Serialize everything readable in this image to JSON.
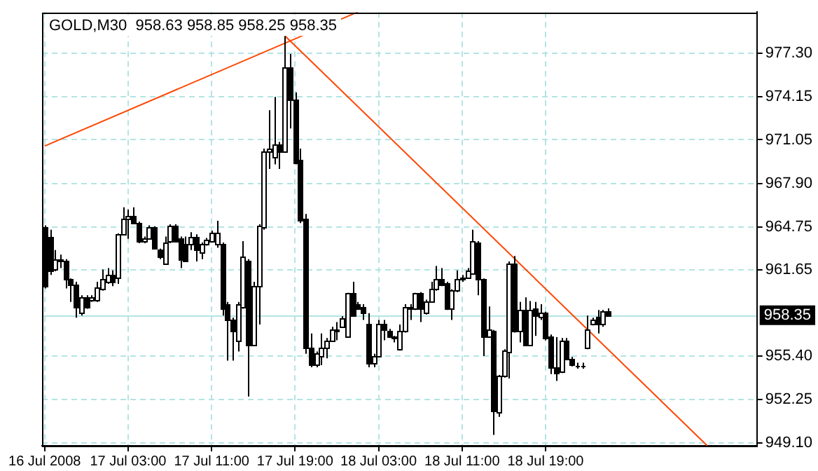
{
  "chart_data": {
    "type": "candlestick",
    "title": "GOLD,M30  958.63 958.85 958.25 958.35",
    "color": "#000000",
    "categories": [
      "16 Jul 2008",
      null,
      null,
      null,
      null,
      null,
      null,
      null,
      null,
      null,
      null,
      null,
      null,
      null,
      null,
      null,
      "17 Jul 03:00",
      null,
      null,
      null,
      null,
      null,
      null,
      null,
      null,
      null,
      null,
      null,
      null,
      null,
      null,
      null,
      "17 Jul 11:00",
      null,
      null,
      null,
      null,
      null,
      null,
      null,
      null,
      null,
      null,
      null,
      null,
      null,
      null,
      null,
      "17 Jul 19:00",
      null,
      null,
      null,
      null,
      null,
      null,
      null,
      null,
      null,
      null,
      null,
      null,
      null,
      null,
      null,
      "18 Jul 03:00",
      null,
      null,
      null,
      null,
      null,
      null,
      null,
      null,
      null,
      null,
      null,
      null,
      null,
      null,
      null,
      "18 Jul 11:00",
      null,
      null,
      null,
      null,
      null,
      null,
      null,
      null,
      null,
      null,
      null,
      null,
      null,
      null,
      null,
      "18 Jul 19:00",
      null,
      null,
      null,
      null,
      null,
      null,
      null,
      null,
      null,
      null,
      null,
      null,
      null,
      null,
      null,
      null,
      null,
      null,
      null,
      null,
      null,
      null,
      null,
      null,
      null,
      null,
      null,
      null,
      null,
      null,
      null,
      null,
      null,
      null,
      null,
      null,
      null,
      null,
      null,
      null
    ],
    "ohlc": [
      [
        964.7,
        964.86,
        960.29,
        960.46
      ],
      [
        964.05,
        964.54,
        961.27,
        961.6
      ],
      [
        961.66,
        963.07,
        961.53,
        962.41
      ],
      [
        962.25,
        962.74,
        961.76,
        962.41
      ],
      [
        962.25,
        962.41,
        960.29,
        960.95
      ],
      [
        960.95,
        961.01,
        959.31,
        960.55
      ],
      [
        960.62,
        960.78,
        958.17,
        958.99
      ],
      [
        958.5,
        959.8,
        958.33,
        959.64
      ],
      [
        959.64,
        959.8,
        958.82,
        958.99
      ],
      [
        959.48,
        959.8,
        959.31,
        959.64
      ],
      [
        959.48,
        960.78,
        959.31,
        960.36
      ],
      [
        960.29,
        961.66,
        960.13,
        960.95
      ],
      [
        960.78,
        961.76,
        960.62,
        961.27
      ],
      [
        961.27,
        961.6,
        960.46,
        960.78
      ],
      [
        961.11,
        964.27,
        960.62,
        964.21
      ],
      [
        964.21,
        966.17,
        964.14,
        965.35
      ],
      [
        965.35,
        966.0,
        963.88,
        965.58
      ],
      [
        965.52,
        966.17,
        964.93,
        965.03
      ],
      [
        965.03,
        965.12,
        963.56,
        963.72
      ],
      [
        963.72,
        964.05,
        963.56,
        963.88
      ],
      [
        963.88,
        964.86,
        963.82,
        964.7
      ],
      [
        964.7,
        964.8,
        963.17,
        963.23
      ],
      [
        963.07,
        963.17,
        962.41,
        962.58
      ],
      [
        962.09,
        964.05,
        962.06,
        963.62
      ],
      [
        963.72,
        964.93,
        963.56,
        964.86
      ],
      [
        964.86,
        964.93,
        963.62,
        963.72
      ],
      [
        963.88,
        964.05,
        961.76,
        962.41
      ],
      [
        963.56,
        964.05,
        962.25,
        962.32
      ],
      [
        963.56,
        964.37,
        963.07,
        964.05
      ],
      [
        964.05,
        964.21,
        962.25,
        963.07
      ],
      [
        962.91,
        963.62,
        962.41,
        963.49
      ],
      [
        963.49,
        963.95,
        963.39,
        963.79
      ],
      [
        963.72,
        964.47,
        963.62,
        964.37
      ],
      [
        963.56,
        965.19,
        963.23,
        964.31
      ],
      [
        963.56,
        963.62,
        958.33,
        958.82
      ],
      [
        959.15,
        959.31,
        955.07,
        958.01
      ],
      [
        958.01,
        958.17,
        955.07,
        957.19
      ],
      [
        956.54,
        959.31,
        955.72,
        959.15
      ],
      [
        958.99,
        963.72,
        958.82,
        962.58
      ],
      [
        962.25,
        962.41,
        952.46,
        956.21
      ],
      [
        956.21,
        960.78,
        956.11,
        960.46
      ],
      [
        960.46,
        964.93,
        957.68,
        964.86
      ],
      [
        964.7,
        970.41,
        964.54,
        970.25
      ],
      [
        970.25,
        973.19,
        968.94,
        970.41
      ],
      [
        969.76,
        974.16,
        969.27,
        970.74
      ],
      [
        970.74,
        970.9,
        968.94,
        970.25
      ],
      [
        970.25,
        978.57,
        970.15,
        976.29
      ],
      [
        976.29,
        977.27,
        971.88,
        974.0
      ],
      [
        974.0,
        974.49,
        969.27,
        969.43
      ],
      [
        969.6,
        970.41,
        965.03,
        965.19
      ],
      [
        965.35,
        965.68,
        955.56,
        956.05
      ],
      [
        956.05,
        957.03,
        954.58,
        954.74
      ],
      [
        954.74,
        955.72,
        954.58,
        955.56
      ],
      [
        955.4,
        957.03,
        954.74,
        956.05
      ],
      [
        956.05,
        956.7,
        955.23,
        956.54
      ],
      [
        956.54,
        957.52,
        956.44,
        957.36
      ],
      [
        957.19,
        957.85,
        956.54,
        957.36
      ],
      [
        957.52,
        958.27,
        957.42,
        958.17
      ],
      [
        956.86,
        959.97,
        956.77,
        959.97
      ],
      [
        959.97,
        960.78,
        958.27,
        958.33
      ],
      [
        959.15,
        959.31,
        958.73,
        958.82
      ],
      [
        958.99,
        959.15,
        958.01,
        958.5
      ],
      [
        957.68,
        958.5,
        954.58,
        954.91
      ],
      [
        954.91,
        955.56,
        954.58,
        955.4
      ],
      [
        955.4,
        958.01,
        955.33,
        957.68
      ],
      [
        957.68,
        958.01,
        956.54,
        957.29
      ],
      [
        957.19,
        957.36,
        956.7,
        956.86
      ],
      [
        956.7,
        956.86,
        956.38,
        956.77
      ],
      [
        955.89,
        957.68,
        955.79,
        957.19
      ],
      [
        957.19,
        959.15,
        957.09,
        958.99
      ],
      [
        958.82,
        959.15,
        958.01,
        958.99
      ],
      [
        958.82,
        959.97,
        958.73,
        959.97
      ],
      [
        959.97,
        960.03,
        957.85,
        958.82
      ],
      [
        958.5,
        959.48,
        958.4,
        959.38
      ],
      [
        959.31,
        960.78,
        959.25,
        960.29
      ],
      [
        960.23,
        961.92,
        960.13,
        961.01
      ],
      [
        961.01,
        961.76,
        960.46,
        960.62
      ],
      [
        960.69,
        960.78,
        958.73,
        958.82
      ],
      [
        958.82,
        960.23,
        958.01,
        960.13
      ],
      [
        960.13,
        961.6,
        960.03,
        961.01
      ],
      [
        961.01,
        961.27,
        960.78,
        961.11
      ],
      [
        961.11,
        961.76,
        961.01,
        961.6
      ],
      [
        961.43,
        964.54,
        961.33,
        963.72
      ],
      [
        963.62,
        963.72,
        959.8,
        960.95
      ],
      [
        960.95,
        961.01,
        955.4,
        956.86
      ],
      [
        956.86,
        958.99,
        956.77,
        957.36
      ],
      [
        957.19,
        957.29,
        949.69,
        951.48
      ],
      [
        951.32,
        954.03,
        950.99,
        953.93
      ],
      [
        953.93,
        955.89,
        953.83,
        955.79
      ],
      [
        955.72,
        962.25,
        953.77,
        962.09
      ],
      [
        962.09,
        962.64,
        957.09,
        957.19
      ],
      [
        957.19,
        959.31,
        956.38,
        958.73
      ],
      [
        958.73,
        959.64,
        956.11,
        956.21
      ],
      [
        956.21,
        959.38,
        956.11,
        958.73
      ],
      [
        958.82,
        959.31,
        956.86,
        958.33
      ],
      [
        958.24,
        959.15,
        958.01,
        958.5
      ],
      [
        958.5,
        958.6,
        956.54,
        956.7
      ],
      [
        956.86,
        956.96,
        954.09,
        954.58
      ],
      [
        954.58,
        956.77,
        953.6,
        954.16
      ],
      [
        954.26,
        956.7,
        954.16,
        956.54
      ],
      [
        956.54,
        956.7,
        955.14,
        955.23
      ],
      [
        955.23,
        955.33,
        954.65,
        954.74
      ],
      [
        954.68,
        954.91,
        954.48,
        954.68
      ],
      [
        954.68,
        954.91,
        954.48,
        954.65
      ],
      [
        956.05,
        958.33,
        955.89,
        957.29
      ],
      [
        957.68,
        958.17,
        957.62,
        958.01
      ],
      [
        958.24,
        958.73,
        957.03,
        957.75
      ],
      [
        957.68,
        958.73,
        957.52,
        958.66
      ],
      [
        958.63,
        958.85,
        958.25,
        958.35
      ],
      null,
      null,
      null,
      null,
      null,
      null,
      null,
      null,
      null,
      null,
      null,
      null,
      null,
      null,
      null,
      null,
      null,
      null,
      null,
      null,
      null,
      null,
      null,
      null,
      null,
      null,
      null,
      null
    ],
    "series": [
      {
        "type": "line",
        "color": "#ff4500",
        "values": [
          970.6,
          null,
          null,
          null,
          null,
          null,
          null,
          null,
          null,
          null,
          null,
          null,
          null,
          null,
          null,
          null,
          null,
          null,
          null,
          null,
          null,
          null,
          null,
          null,
          null,
          null,
          null,
          null,
          null,
          null,
          null,
          null,
          null,
          null,
          null,
          null,
          null,
          null,
          null,
          null,
          null,
          null,
          null,
          null,
          null,
          null,
          null,
          null,
          null,
          null,
          null,
          null,
          null,
          null,
          null,
          null,
          null,
          null,
          null,
          null,
          980.3,
          null,
          null,
          null,
          null,
          null,
          null,
          null,
          null,
          null,
          null,
          null,
          null,
          null,
          null,
          null,
          null,
          null,
          null,
          null,
          null,
          null,
          null,
          null,
          null,
          null,
          null,
          null,
          null,
          null,
          null,
          null,
          null,
          null,
          null,
          null,
          null,
          null,
          null,
          null,
          null,
          null,
          null,
          null,
          null,
          null,
          null,
          null,
          null,
          null,
          null,
          null,
          null,
          null,
          null,
          null,
          null,
          null,
          null,
          null,
          null,
          null,
          null,
          null,
          null,
          null,
          null,
          null,
          null,
          null,
          null,
          null,
          null,
          null,
          null,
          null,
          null
        ]
      },
      {
        "type": "line",
        "color": "#ff4500",
        "values": [
          null,
          null,
          null,
          null,
          null,
          null,
          null,
          null,
          null,
          null,
          null,
          null,
          null,
          null,
          null,
          null,
          null,
          null,
          null,
          null,
          null,
          null,
          null,
          null,
          null,
          null,
          null,
          null,
          null,
          null,
          null,
          null,
          null,
          null,
          null,
          null,
          null,
          null,
          null,
          null,
          null,
          null,
          null,
          null,
          null,
          null,
          978.6,
          null,
          null,
          null,
          null,
          null,
          null,
          null,
          null,
          null,
          null,
          null,
          null,
          null,
          null,
          null,
          null,
          null,
          null,
          null,
          null,
          null,
          null,
          null,
          null,
          null,
          null,
          null,
          null,
          null,
          null,
          null,
          null,
          null,
          null,
          null,
          null,
          null,
          null,
          null,
          null,
          null,
          null,
          null,
          null,
          null,
          null,
          null,
          null,
          null,
          null,
          null,
          null,
          null,
          null,
          null,
          null,
          null,
          null,
          null,
          null,
          null,
          null,
          null,
          null,
          null,
          null,
          null,
          null,
          null,
          null,
          null,
          null,
          null,
          null,
          null,
          null,
          null,
          null,
          null,
          null,
          948.9,
          null,
          null,
          null,
          null,
          null,
          null,
          null,
          null,
          null
        ]
      }
    ],
    "colors": [
      "#000000",
      "#000000",
      "#ffffff",
      "#ffffff",
      "#000000",
      "#000000",
      "#000000",
      "#ffffff",
      "#000000",
      "#ffffff",
      "#ffffff",
      "#ffffff",
      "#ffffff",
      "#000000",
      "#ffffff",
      "#ffffff",
      "#ffffff",
      "#000000",
      "#000000",
      "#ffffff",
      "#ffffff",
      "#000000",
      "#000000",
      "#ffffff",
      "#ffffff",
      "#000000",
      "#000000",
      "#000000",
      "#ffffff",
      "#000000",
      "#ffffff",
      "#ffffff",
      "#ffffff",
      "#ffffff",
      "#000000",
      "#000000",
      "#000000",
      "#ffffff",
      "#ffffff",
      "#000000",
      "#ffffff",
      "#ffffff",
      "#ffffff",
      "#ffffff",
      "#ffffff",
      "#000000",
      "#ffffff",
      "#000000",
      "#000000",
      "#000000",
      "#000000",
      "#000000",
      "#ffffff",
      "#ffffff",
      "#ffffff",
      "#ffffff",
      "#ffffff",
      "#ffffff",
      "#ffffff",
      "#000000",
      "#000000",
      "#000000",
      "#000000",
      "#ffffff",
      "#ffffff",
      "#000000",
      "#000000",
      "#ffffff",
      "#ffffff",
      "#ffffff",
      "#ffffff",
      "#ffffff",
      "#000000",
      "#ffffff",
      "#ffffff",
      "#ffffff",
      "#000000",
      "#000000",
      "#ffffff",
      "#ffffff",
      "#ffffff",
      "#ffffff",
      "#ffffff",
      "#000000",
      "#000000",
      "#ffffff",
      "#000000",
      "#ffffff",
      "#ffffff",
      "#ffffff",
      "#000000",
      "#ffffff",
      "#000000",
      "#ffffff",
      "#000000",
      "#ffffff",
      "#000000",
      "#000000",
      "#000000",
      "#ffffff",
      "#000000",
      "#000000",
      "#000000",
      "#000000",
      "#ffffff",
      "#ffffff",
      "#000000",
      "#ffffff",
      "#000000",
      null,
      null,
      null,
      null,
      null,
      null,
      null,
      null,
      null,
      null,
      null,
      null,
      null,
      null,
      null,
      null,
      null,
      null,
      null,
      null,
      null,
      null,
      null,
      null,
      null,
      null,
      null,
      null
    ],
    "ylim": [
      948.9,
      980.3
    ],
    "yticks": [
      {
        "value": 949.1,
        "label": "949.10"
      },
      {
        "value": 952.25,
        "label": "952.25"
      },
      {
        "value": 955.4,
        "label": "955.40"
      },
      {
        "value": 961.65,
        "label": "961.65"
      },
      {
        "value": 964.75,
        "label": "964.75"
      },
      {
        "value": 967.9,
        "label": "967.90"
      },
      {
        "value": 971.05,
        "label": "971.05"
      },
      {
        "value": 974.15,
        "label": "974.15"
      },
      {
        "value": 977.3,
        "label": "977.30"
      }
    ],
    "ref_lines": [
      {
        "axis": "y",
        "value": 958.35,
        "label": "958.35",
        "color": "#b4e4e4"
      }
    ],
    "grid": true
  }
}
